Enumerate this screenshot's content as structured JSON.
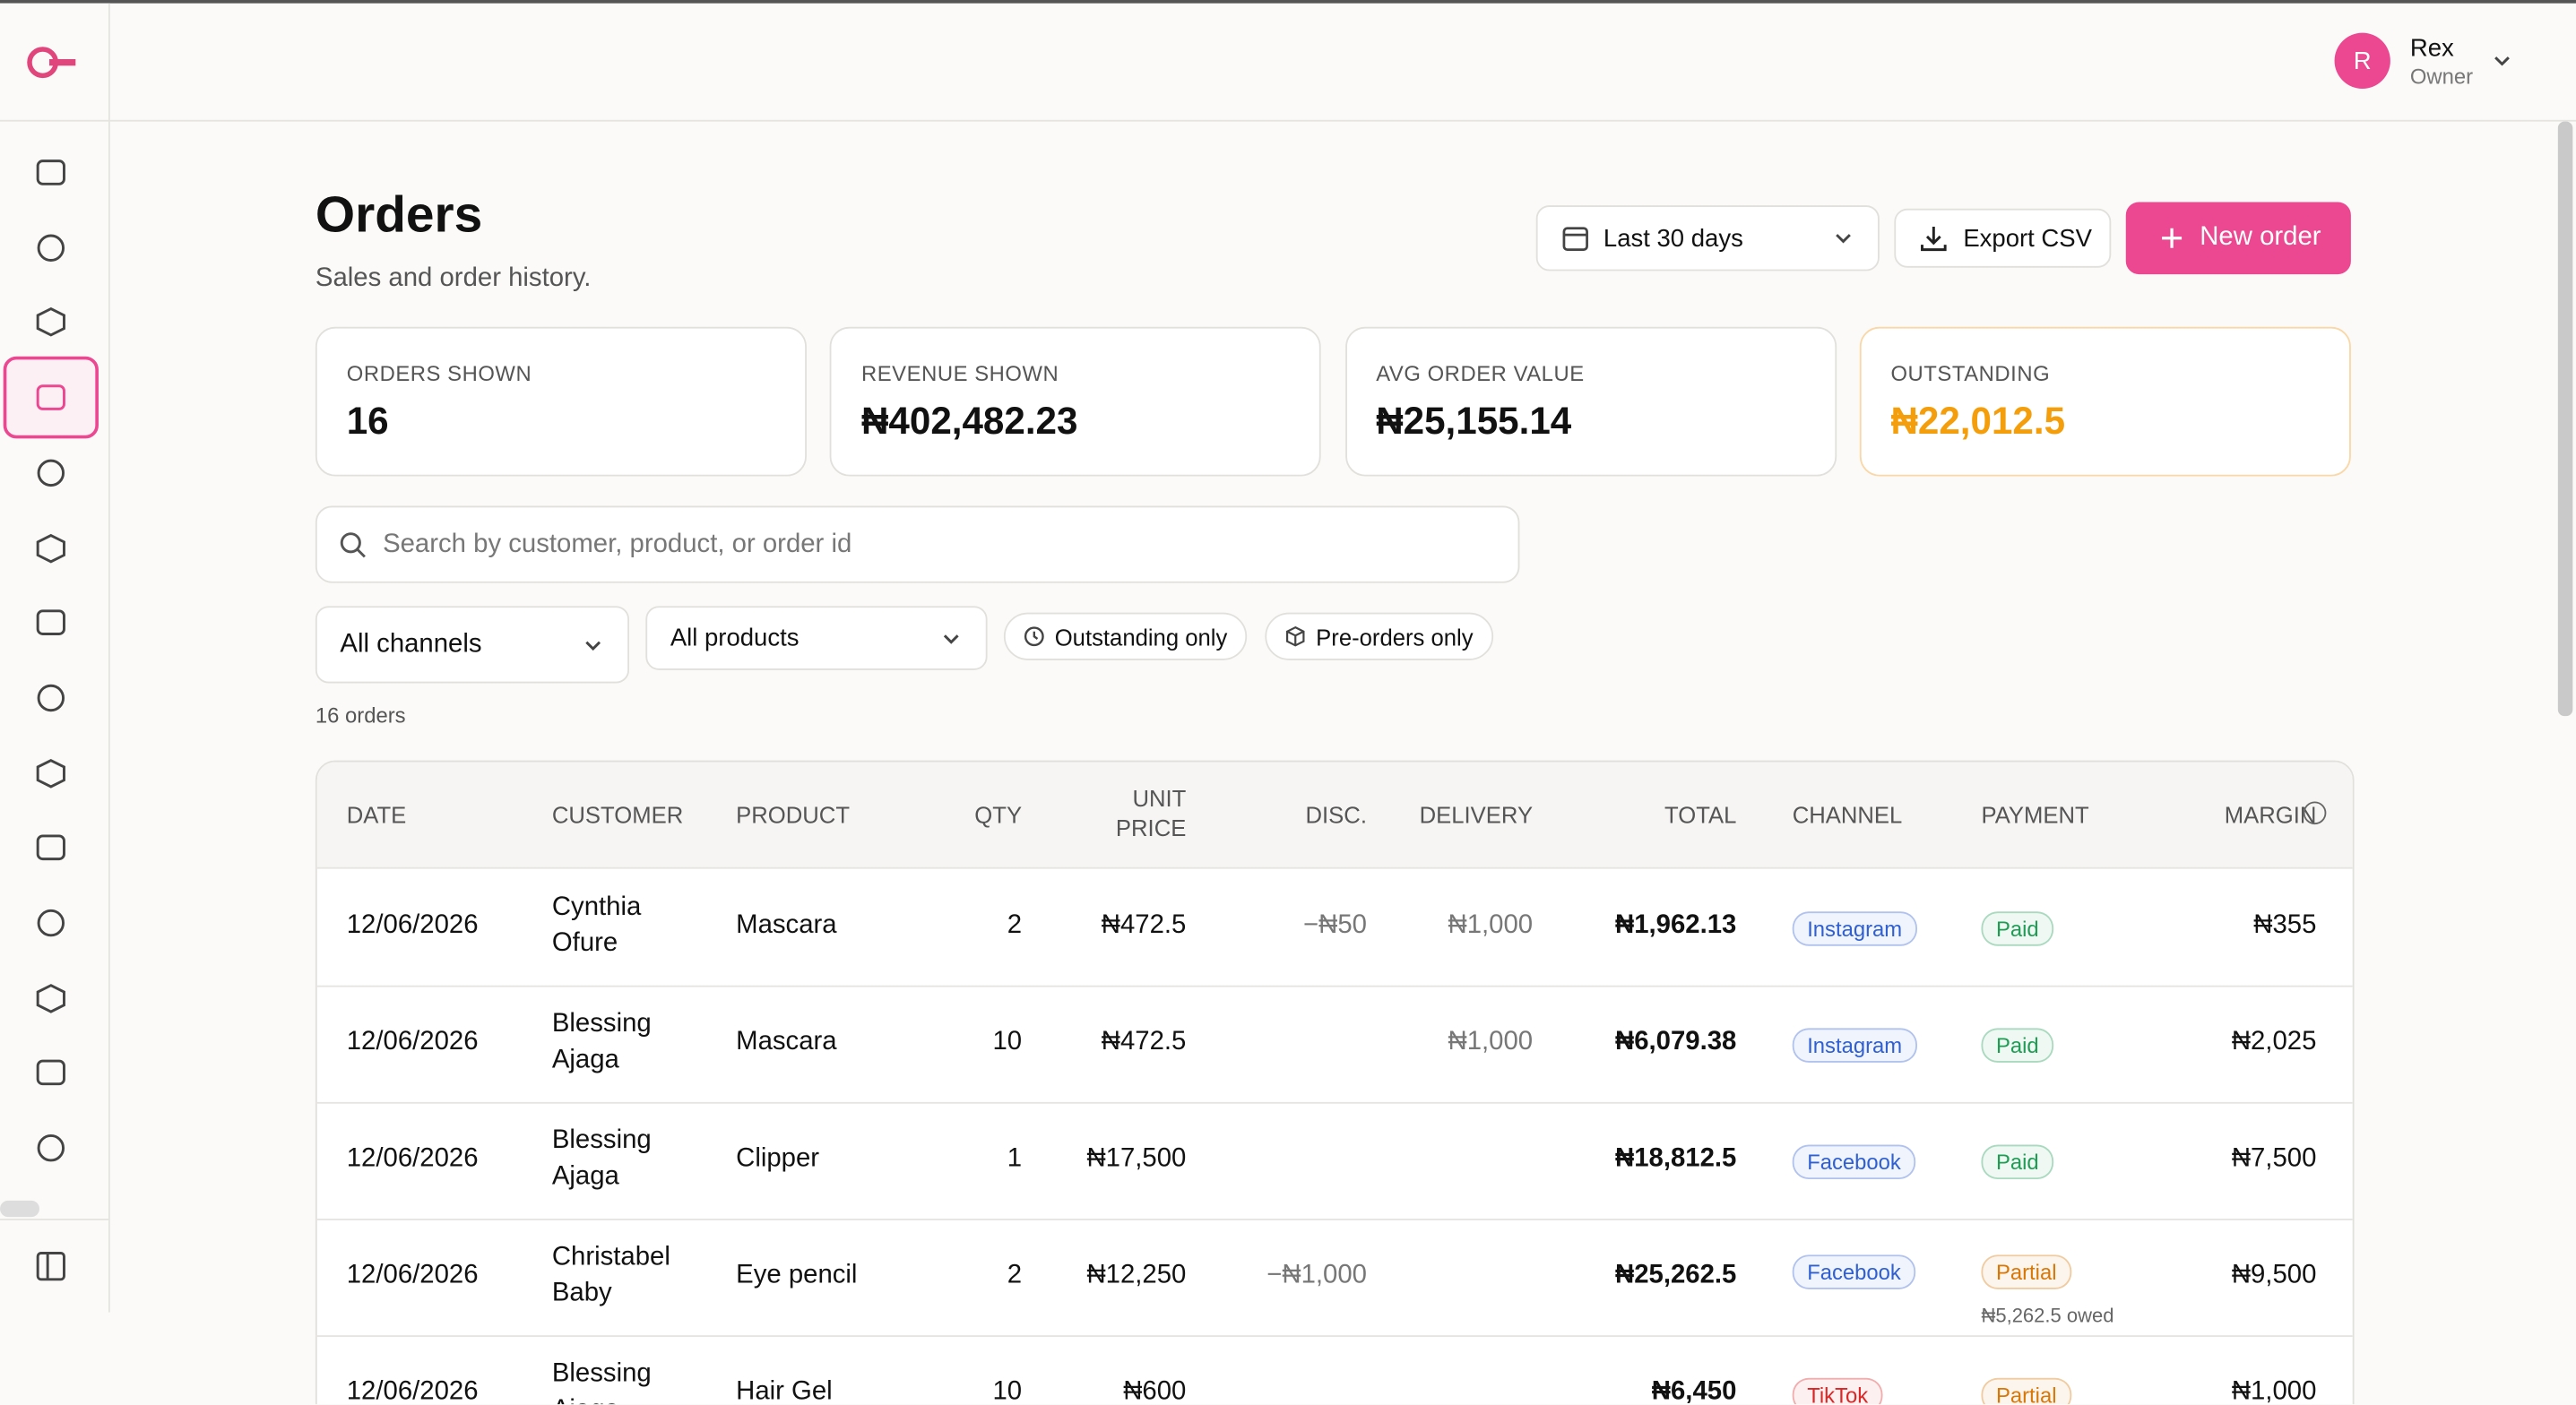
{
  "header": {
    "user_initial": "R",
    "user_name": "Rex",
    "user_role": "Owner"
  },
  "page": {
    "title": "Orders",
    "subtitle": "Sales and order history.",
    "date_range": "Last 30 days",
    "export_button": "Export CSV",
    "new_button": "New order"
  },
  "stats": [
    {
      "label": "ORDERS SHOWN",
      "value": "16",
      "color": "#111111"
    },
    {
      "label": "REVENUE SHOWN",
      "value": "₦402,482.23",
      "color": "#111111"
    },
    {
      "label": "AVG ORDER VALUE",
      "value": "₦25,155.14",
      "color": "#111111"
    },
    {
      "label": "OUTSTANDING",
      "value": "₦22,012.5",
      "color": "#f59e0b"
    }
  ],
  "search_placeholder": "Search by customer, product, or order id",
  "filters": {
    "channel": "All channels",
    "product": "All products",
    "outstanding": "Outstanding only",
    "preorders": "Pre-orders only"
  },
  "order_count": "16 orders",
  "table": {
    "columns": [
      "DATE",
      "CUSTOMER",
      "PRODUCT",
      "QTY",
      "UNIT PRICE",
      "DISC.",
      "DELIVERY",
      "TOTAL",
      "CHANNEL",
      "PAYMENT",
      "MARGIN"
    ],
    "rows": [
      {
        "date": "12/06/2026",
        "customer": "Cynthia Ofure",
        "product": "Mascara",
        "qty": "2",
        "unit_price": "₦472.5",
        "discount": "−₦50",
        "delivery": "₦1,000",
        "total": "₦1,962.13",
        "channel": "Instagram",
        "channel_color": "#2f5fd0",
        "payment": "Paid",
        "payment_color": "#1f9d55",
        "margin": "₦355"
      },
      {
        "date": "12/06/2026",
        "customer": "Blessing Ajaga",
        "product": "Mascara",
        "qty": "10",
        "unit_price": "₦472.5",
        "delivery": "₦1,000",
        "total": "₦6,079.38",
        "channel": "Instagram",
        "channel_color": "#2f5fd0",
        "payment": "Paid",
        "payment_color": "#1f9d55",
        "margin": "₦2,025"
      },
      {
        "date": "12/06/2026",
        "customer": "Blessing Ajaga",
        "product": "Clipper",
        "qty": "1",
        "unit_price": "₦17,500",
        "total": "₦18,812.5",
        "channel": "Facebook",
        "channel_color": "#2f5fd0",
        "payment": "Paid",
        "payment_color": "#1f9d55",
        "margin": "₦7,500"
      },
      {
        "date": "12/06/2026",
        "customer": "Christabel Baby",
        "product": "Eye pencil",
        "qty": "2",
        "unit_price": "₦12,250",
        "discount": "−₦1,000",
        "total": "₦25,262.5",
        "channel": "Facebook",
        "channel_color": "#2f5fd0",
        "payment": "Partial",
        "payment_color": "#d97706",
        "owed": "₦5,262.5 owed",
        "margin": "₦9,500"
      },
      {
        "date": "12/06/2026",
        "customer": "Blessing Ajaga",
        "product": "Hair Gel",
        "qty": "10",
        "unit_price": "₦600",
        "total": "₦6,450",
        "channel": "TikTok",
        "channel_color": "#dc2626",
        "payment": "Partial",
        "payment_color": "#d97706",
        "margin": "₦1,000"
      }
    ]
  }
}
